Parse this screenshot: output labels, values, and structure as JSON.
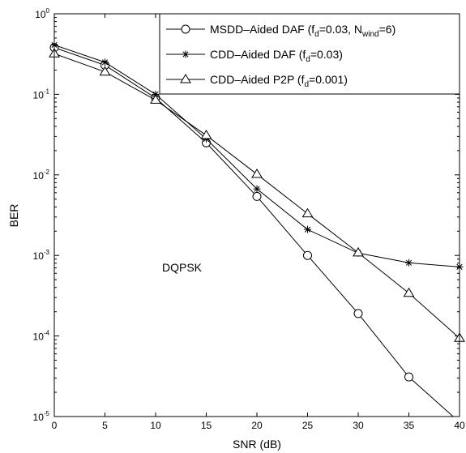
{
  "chart_data": {
    "type": "line",
    "xlabel": "SNR (dB)",
    "ylabel": "BER",
    "xlim": [
      0,
      40
    ],
    "ylim": [
      1e-05,
      1
    ],
    "yscale": "log",
    "grid": false,
    "legend_position": "top-right",
    "x_ticks": [
      "0",
      "5",
      "10",
      "15",
      "20",
      "25",
      "30",
      "35",
      "40"
    ],
    "y_ticks": [
      {
        "base": "10",
        "exp": "0"
      },
      {
        "base": "10",
        "exp": "-1"
      },
      {
        "base": "10",
        "exp": "-2"
      },
      {
        "base": "10",
        "exp": "-3"
      },
      {
        "base": "10",
        "exp": "-4"
      },
      {
        "base": "10",
        "exp": "-5"
      }
    ],
    "annotation": "DQPSK",
    "series": [
      {
        "legend_parts": [
          {
            "t": "MSDD–Aided DAF (f"
          },
          {
            "t": "d",
            "sub": true
          },
          {
            "t": "=0.03, N"
          },
          {
            "t": "wind",
            "sub": true
          },
          {
            "t": "=6)"
          }
        ],
        "marker": "circle",
        "x": [
          0,
          5,
          10,
          15,
          20,
          25,
          30,
          35,
          40
        ],
        "y": [
          0.38,
          0.23,
          0.09,
          0.025,
          0.0054,
          0.001,
          0.00019,
          3.1e-05,
          8.5e-06
        ]
      },
      {
        "legend_parts": [
          {
            "t": "CDD–Aided DAF (f"
          },
          {
            "t": "d",
            "sub": true
          },
          {
            "t": "=0.03)"
          }
        ],
        "marker": "star",
        "x": [
          0,
          5,
          10,
          15,
          20,
          25,
          30,
          35,
          40
        ],
        "y": [
          0.41,
          0.25,
          0.1,
          0.028,
          0.0067,
          0.0021,
          0.00107,
          0.00081,
          0.00072
        ]
      },
      {
        "legend_parts": [
          {
            "t": "CDD–Aided P2P (f"
          },
          {
            "t": "d",
            "sub": true
          },
          {
            "t": "=0.001)"
          }
        ],
        "marker": "triangle",
        "x": [
          0,
          5,
          10,
          15,
          20,
          25,
          30,
          35,
          40
        ],
        "y": [
          0.32,
          0.19,
          0.085,
          0.031,
          0.0102,
          0.0033,
          0.00108,
          0.00034,
          9.4e-05
        ]
      }
    ]
  }
}
